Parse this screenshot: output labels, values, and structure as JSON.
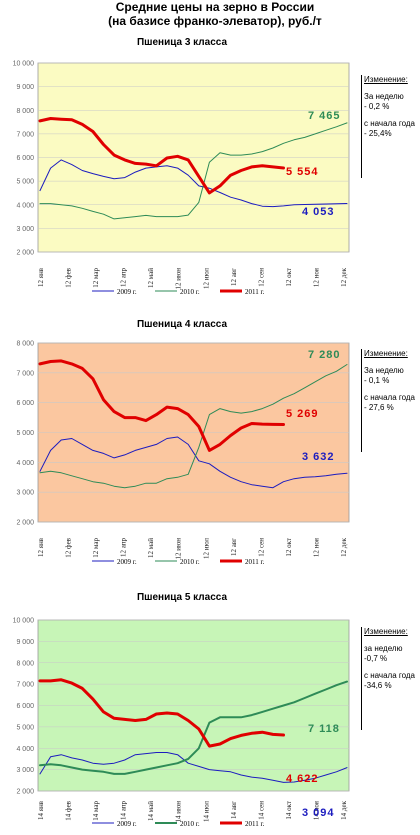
{
  "title_line1": "Средние цены на зерно в России",
  "title_line2": "(на базисе франко-элеватор), руб./т",
  "chart_data": [
    {
      "type": "line",
      "title": "Пшеница 3 класса",
      "bg": "#fbfbc2",
      "ylim": [
        2000,
        10000
      ],
      "yticks": [
        "2 000",
        "3 000",
        "4 000",
        "5 000",
        "6 000",
        "7 000",
        "8 000",
        "9 000",
        "10 000"
      ],
      "x_labels": [
        "12 янв",
        "12 фев",
        "12 мар",
        "12 апр",
        "12 май",
        "12 июн",
        "12 июл",
        "12 авг",
        "12 сен",
        "12 окт",
        "12 ноя",
        "12 дек"
      ],
      "series": [
        {
          "name": "2009 г.",
          "color": "#1c1cbf",
          "width": 1,
          "values": [
            4600,
            5550,
            5900,
            5700,
            5450,
            5320,
            5200,
            5100,
            5150,
            5380,
            5550,
            5600,
            5650,
            5550,
            5250,
            4800,
            4700,
            4520,
            4320,
            4200,
            4050,
            3940,
            3920,
            3950,
            4000,
            4010,
            4020,
            4030,
            4040,
            4053
          ]
        },
        {
          "name": "2010 г.",
          "color": "#2e8b57",
          "width": 1,
          "values": [
            4050,
            4050,
            4000,
            3950,
            3850,
            3720,
            3600,
            3400,
            3450,
            3500,
            3550,
            3500,
            3500,
            3500,
            3560,
            4100,
            5800,
            6200,
            6100,
            6100,
            6150,
            6250,
            6400,
            6600,
            6750,
            6850,
            7000,
            7150,
            7300,
            7465
          ]
        },
        {
          "name": "2011 г.",
          "color": "#e00000",
          "width": 3,
          "values": [
            7550,
            7650,
            7620,
            7600,
            7400,
            7100,
            6550,
            6100,
            5900,
            5750,
            5720,
            5650,
            5980,
            6050,
            5900,
            5200,
            4500,
            4800,
            5250,
            5450,
            5600,
            5650,
            5600,
            5554
          ]
        }
      ],
      "end_labels": [
        {
          "text": "7 465",
          "color": "#2e8b57"
        },
        {
          "text": "5 554",
          "color": "#e00000"
        },
        {
          "text": "4 053",
          "color": "#1c1cbf"
        }
      ],
      "side": {
        "header": "Изменение:",
        "week_label": "За неделю",
        "week_value": "- 0,2 %",
        "start_label": "с начала года",
        "start_value": "- 25,4%"
      }
    },
    {
      "type": "line",
      "title": "Пшеница 4 класса",
      "bg": "#fbc7a0",
      "ylim": [
        2000,
        8000
      ],
      "yticks": [
        "2 000",
        "3 000",
        "4 000",
        "5 000",
        "6 000",
        "7 000",
        "8 000"
      ],
      "x_labels": [
        "12 янв",
        "12 фев",
        "12 мар",
        "12 апр",
        "12 май",
        "12 июн",
        "12 июл",
        "12 авг",
        "12 сен",
        "12 окт",
        "12 ноя",
        "12 дек"
      ],
      "series": [
        {
          "name": "2009 г.",
          "color": "#1c1cbf",
          "width": 1,
          "values": [
            3700,
            4400,
            4750,
            4800,
            4600,
            4400,
            4300,
            4150,
            4250,
            4400,
            4500,
            4600,
            4800,
            4850,
            4600,
            4050,
            3950,
            3700,
            3500,
            3350,
            3250,
            3200,
            3150,
            3350,
            3450,
            3500,
            3520,
            3550,
            3600,
            3632
          ]
        },
        {
          "name": "2010 г.",
          "color": "#2e8b57",
          "width": 1,
          "values": [
            3650,
            3700,
            3650,
            3550,
            3450,
            3350,
            3300,
            3200,
            3150,
            3200,
            3300,
            3300,
            3450,
            3500,
            3600,
            4500,
            5600,
            5800,
            5700,
            5650,
            5700,
            5800,
            5950,
            6150,
            6300,
            6500,
            6700,
            6900,
            7050,
            7280
          ]
        },
        {
          "name": "2011 г.",
          "color": "#e00000",
          "width": 3,
          "values": [
            7300,
            7380,
            7400,
            7300,
            7150,
            6800,
            6100,
            5700,
            5500,
            5500,
            5400,
            5600,
            5850,
            5800,
            5600,
            5200,
            4400,
            4600,
            4900,
            5150,
            5300,
            5280,
            5270,
            5269
          ]
        }
      ],
      "end_labels": [
        {
          "text": "7 280",
          "color": "#2e8b57"
        },
        {
          "text": "5 269",
          "color": "#e00000"
        },
        {
          "text": "3 632",
          "color": "#1c1cbf"
        }
      ],
      "side": {
        "header": "Изменение:",
        "week_label": "За неделю",
        "week_value": "- 0,1 %",
        "start_label": "с начала года",
        "start_value": "- 27,6 %"
      }
    },
    {
      "type": "line",
      "title": "Пшеница 5 класса",
      "bg": "#c7f5b7",
      "ylim": [
        2000,
        10000
      ],
      "yticks": [
        "2 000",
        "3 000",
        "4 000",
        "5 000",
        "6 000",
        "7 000",
        "8 000",
        "9 000",
        "10 000"
      ],
      "x_labels": [
        "14 янв",
        "14 фев",
        "14 мар",
        "14 апр",
        "14 май",
        "14 июн",
        "14 июл",
        "14 авг",
        "14 сен",
        "14 окт",
        "14 ноя",
        "14 дек"
      ],
      "series": [
        {
          "name": "2009 г.",
          "color": "#1c1cbf",
          "width": 1,
          "values": [
            2800,
            3600,
            3700,
            3550,
            3450,
            3300,
            3250,
            3300,
            3450,
            3700,
            3750,
            3800,
            3800,
            3700,
            3300,
            3150,
            3000,
            2950,
            2900,
            2750,
            2650,
            2600,
            2500,
            2400,
            2420,
            2500,
            2600,
            2750,
            2900,
            3094
          ]
        },
        {
          "name": "2010 г.",
          "color": "#2e8b57",
          "width": 2,
          "values": [
            3200,
            3250,
            3200,
            3100,
            3000,
            2950,
            2900,
            2800,
            2800,
            2900,
            3000,
            3100,
            3200,
            3300,
            3500,
            4000,
            5200,
            5450,
            5450,
            5450,
            5550,
            5700,
            5850,
            6000,
            6150,
            6350,
            6550,
            6750,
            6950,
            7118
          ]
        },
        {
          "name": "2011 г.",
          "color": "#e00000",
          "width": 3,
          "values": [
            7150,
            7150,
            7200,
            7050,
            6800,
            6300,
            5700,
            5400,
            5350,
            5300,
            5350,
            5600,
            5650,
            5600,
            5300,
            4900,
            4100,
            4200,
            4450,
            4600,
            4700,
            4750,
            4650,
            4622
          ]
        }
      ],
      "end_labels": [
        {
          "text": "7 118",
          "color": "#2e8b57"
        },
        {
          "text": "4 622",
          "color": "#e00000"
        },
        {
          "text": "3 094",
          "color": "#1c1cbf"
        }
      ],
      "side": {
        "header": "Изменение:",
        "week_label": "за неделю",
        "week_value": "-0,7 %",
        "start_label": "с начала года",
        "start_value": "-34,6 %"
      }
    }
  ]
}
